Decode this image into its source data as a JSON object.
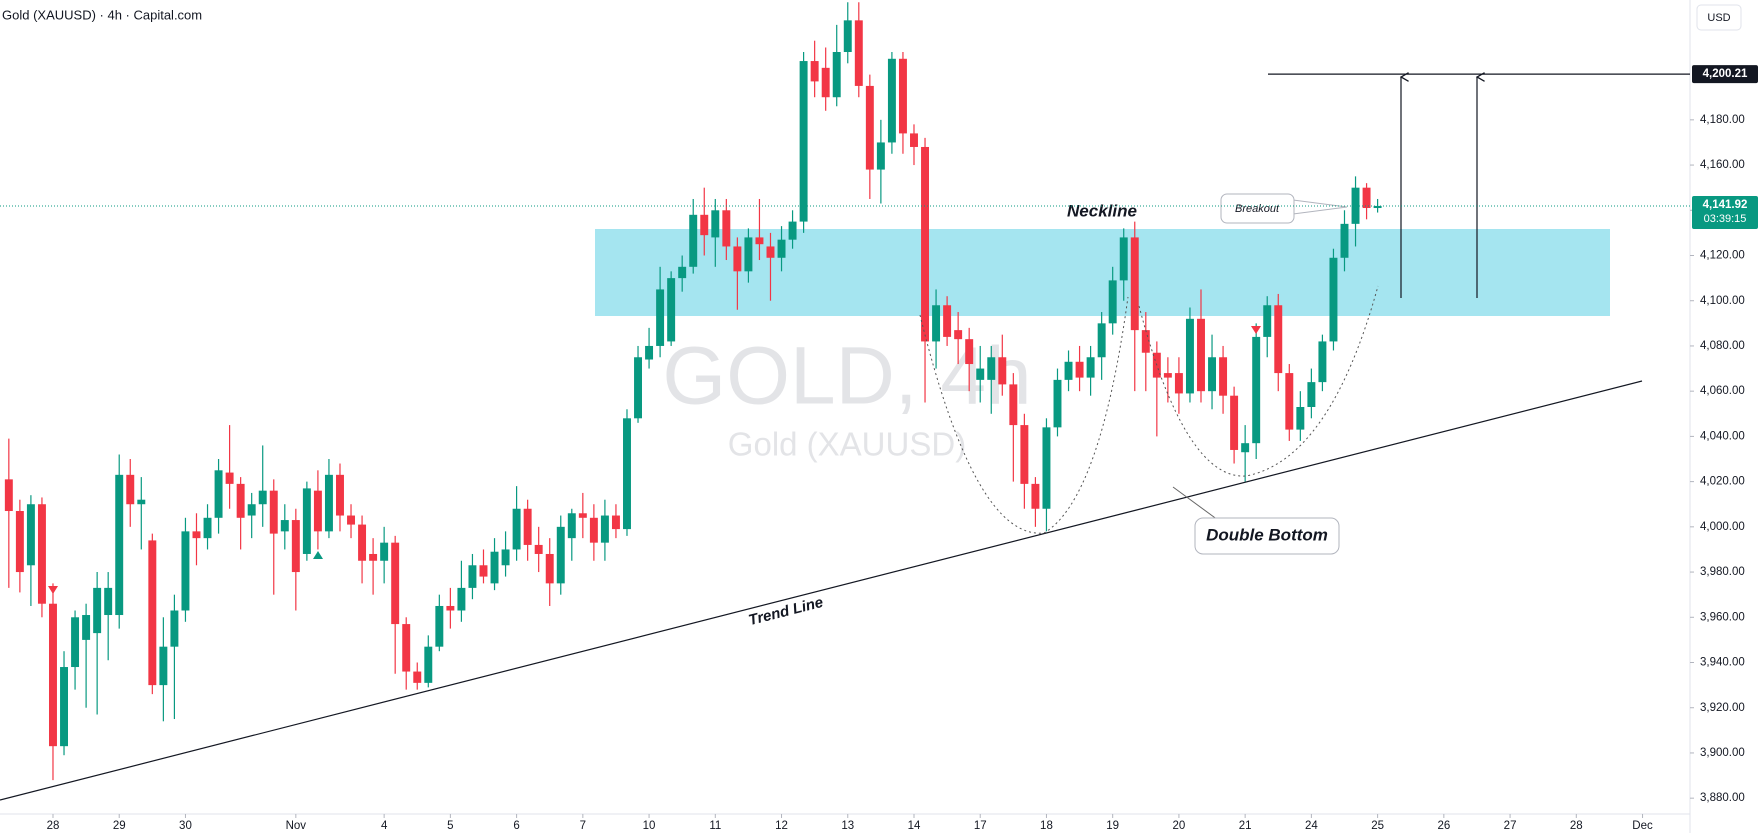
{
  "chart_data": {
    "type": "candlestick",
    "title": "Gold (XAUUSD) · 4h · Capital.com",
    "currency": "USD",
    "watermark_title": "GOLD, 4h",
    "watermark_subtitle": "Gold (XAUUSD)",
    "annotations": {
      "neckline": "Neckline",
      "breakout": "Breakout",
      "double_bottom": "Double Bottom",
      "trend_line": "Trend Line"
    },
    "up_color": "#089981",
    "down_color": "#f23645",
    "grid": false,
    "open": [
      4021,
      4007,
      3983,
      4010,
      3966,
      3903,
      3938,
      3950,
      3953,
      3961,
      3961,
      4023,
      4010,
      3994,
      3930,
      3947,
      3963,
      3998,
      3995,
      4004,
      4024,
      4019,
      4005,
      4010,
      4016,
      3998,
      4003,
      3988,
      4016,
      3998,
      4023,
      4005,
      4001,
      3988,
      3985,
      3993,
      3957,
      3936,
      3931,
      3947,
      3965,
      3963,
      3973,
      3983,
      3975,
      3983,
      3990,
      4008,
      3992,
      3988,
      3975,
      3995,
      4006,
      4004,
      3993,
      4005,
      3999,
      4048,
      4074,
      4080,
      4082,
      4110,
      4115,
      4138,
      4128,
      4140,
      4124,
      4113,
      4128,
      4124,
      4119,
      4127,
      4135,
      4206,
      4203,
      4190,
      4210,
      4224,
      4195,
      4158,
      4170,
      4207,
      4174,
      4168,
      4082,
      4098,
      4087,
      4083,
      4065,
      4065,
      4075,
      4063,
      4045,
      4019,
      4008,
      4044,
      4065,
      4073,
      4066,
      4075,
      4090,
      4109,
      4128,
      4087,
      4077,
      4068,
      4068,
      4059,
      4092,
      4060,
      4075,
      4058,
      4033,
      4037,
      4084,
      4098,
      4068,
      4043,
      4053,
      4064,
      4082,
      4119,
      4134,
      4150,
      4141
    ],
    "high": [
      4039,
      4012,
      4014,
      4013,
      3975,
      3945,
      3963,
      3966,
      3980,
      3980,
      4032,
      4030,
      4022,
      3997,
      3960,
      3970,
      4004,
      4006,
      4010,
      4030,
      4045,
      4022,
      4015,
      4036,
      4021,
      4010,
      4008,
      4020,
      4025,
      4030,
      4028,
      4010,
      4005,
      3995,
      4000,
      3996,
      3960,
      3940,
      3952,
      3970,
      3973,
      3985,
      3988,
      3990,
      3995,
      3998,
      4018,
      4012,
      4000,
      3995,
      4005,
      4008,
      4015,
      4010,
      4012,
      4010,
      4052,
      4080,
      4088,
      4115,
      4113,
      4120,
      4145,
      4150,
      4145,
      4145,
      4128,
      4132,
      4145,
      4130,
      4133,
      4140,
      4210,
      4215,
      4212,
      4222,
      4232,
      4232,
      4200,
      4180,
      4210,
      4210,
      4178,
      4172,
      4105,
      4102,
      4095,
      4088,
      4080,
      4080,
      4085,
      4068,
      4050,
      4022,
      4048,
      4070,
      4078,
      4080,
      4080,
      4095,
      4115,
      4132,
      4135,
      4095,
      4082,
      4075,
      4075,
      4097,
      4105,
      4085,
      4080,
      4062,
      4045,
      4090,
      4102,
      4103,
      4072,
      4060,
      4070,
      4085,
      4123,
      4140,
      4155,
      4152,
      4145
    ],
    "low": [
      3973,
      3971,
      3965,
      3960,
      3888,
      3899,
      3928,
      3920,
      3917,
      3941,
      3955,
      4000,
      3990,
      3926,
      3914,
      3915,
      3958,
      3983,
      3990,
      3997,
      4008,
      3990,
      3995,
      4000,
      3970,
      3990,
      3963,
      3985,
      3990,
      3995,
      3998,
      3995,
      3975,
      3970,
      3975,
      3935,
      3928,
      3928,
      3929,
      3945,
      3955,
      3958,
      3968,
      3975,
      3972,
      3978,
      3985,
      3985,
      3980,
      3965,
      3970,
      3985,
      3995,
      3985,
      3985,
      3995,
      3996,
      4046,
      4070,
      4075,
      4080,
      4104,
      4112,
      4120,
      4115,
      4118,
      4096,
      4108,
      4118,
      4100,
      4113,
      4123,
      4130,
      4190,
      4184,
      4186,
      4205,
      4190,
      4145,
      4143,
      4165,
      4165,
      4160,
      4055,
      4070,
      4080,
      4072,
      4060,
      4055,
      4050,
      4058,
      4020,
      4008,
      4000,
      3998,
      4040,
      4060,
      4060,
      4058,
      4065,
      4085,
      4100,
      4060,
      4060,
      4040,
      4055,
      4050,
      4055,
      4055,
      4052,
      4050,
      4028,
      4020,
      4030,
      4075,
      4060,
      4038,
      4038,
      4048,
      4060,
      4078,
      4113,
      4124,
      4136,
      4139
    ],
    "close": [
      4007,
      3980,
      4010,
      3966,
      3903,
      3938,
      3960,
      3961,
      3973,
      3973,
      4023,
      4010,
      4012,
      3930,
      3947,
      3963,
      3998,
      3995,
      4004,
      4025,
      4019,
      4004,
      4010,
      4016,
      3997,
      4003,
      3980,
      4017,
      3998,
      4023,
      4005,
      4001,
      3985,
      3985,
      3993,
      3957,
      3936,
      3931,
      3947,
      3965,
      3963,
      3973,
      3983,
      3978,
      3989,
      3990,
      4008,
      3992,
      3988,
      3975,
      4000,
      4006,
      4004,
      3993,
      4005,
      3999,
      4048,
      4075,
      4080,
      4105,
      4110,
      4115,
      4138,
      4129,
      4140,
      4124,
      4113,
      4128,
      4125,
      4119,
      4127,
      4135,
      4206,
      4197,
      4190,
      4210,
      4224,
      4195,
      4158,
      4170,
      4207,
      4174,
      4168,
      4082,
      4098,
      4084,
      4083,
      4072,
      4070,
      4075,
      4063,
      4045,
      4019,
      4008,
      4044,
      4065,
      4073,
      4066,
      4075,
      4090,
      4109,
      4128,
      4087,
      4077,
      4066,
      4066,
      4059,
      4092,
      4060,
      4075,
      4058,
      4034,
      4037,
      4084,
      4098,
      4068,
      4043,
      4053,
      4064,
      4082,
      4119,
      4134,
      4150,
      4141,
      4141.92
    ],
    "xlim": [
      -0.8,
      152.3
    ],
    "xticks": [
      {
        "value": 4,
        "label": "28"
      },
      {
        "value": 10,
        "label": "29"
      },
      {
        "value": 16,
        "label": "30"
      },
      {
        "value": 26,
        "label": "Nov"
      },
      {
        "value": 34,
        "label": "4"
      },
      {
        "value": 40,
        "label": "5"
      },
      {
        "value": 46,
        "label": "6"
      },
      {
        "value": 52,
        "label": "7"
      },
      {
        "value": 58,
        "label": "10"
      },
      {
        "value": 64,
        "label": "11"
      },
      {
        "value": 70,
        "label": "12"
      },
      {
        "value": 76,
        "label": "13"
      },
      {
        "value": 82,
        "label": "14"
      },
      {
        "value": 88,
        "label": "17"
      },
      {
        "value": 94,
        "label": "18"
      },
      {
        "value": 100,
        "label": "19"
      },
      {
        "value": 106,
        "label": "20"
      },
      {
        "value": 112,
        "label": "21"
      },
      {
        "value": 118,
        "label": "24"
      },
      {
        "value": 124,
        "label": "25"
      },
      {
        "value": 130,
        "label": "26"
      },
      {
        "value": 136,
        "label": "27"
      },
      {
        "value": 142,
        "label": "28"
      },
      {
        "value": 148,
        "label": "Dec"
      }
    ],
    "ylim": [
      3873,
      4233
    ],
    "yticks": [
      {
        "value": 3880,
        "label": "3,880.00"
      },
      {
        "value": 3900,
        "label": "3,900.00"
      },
      {
        "value": 3920,
        "label": "3,920.00"
      },
      {
        "value": 3940,
        "label": "3,940.00"
      },
      {
        "value": 3960,
        "label": "3,960.00"
      },
      {
        "value": 3980,
        "label": "3,980.00"
      },
      {
        "value": 4000,
        "label": "4,000.00"
      },
      {
        "value": 4020,
        "label": "4,020.00"
      },
      {
        "value": 4040,
        "label": "4,040.00"
      },
      {
        "value": 4060,
        "label": "4,060.00"
      },
      {
        "value": 4080,
        "label": "4,080.00"
      },
      {
        "value": 4100,
        "label": "4,100.00"
      },
      {
        "value": 4120,
        "label": "4,120.00"
      },
      {
        "value": 4140,
        "label": "4,140.00"
      },
      {
        "value": 4160,
        "label": "4,160.00"
      },
      {
        "value": 4180,
        "label": "4,180.00"
      }
    ],
    "target": {
      "value": 4200.21,
      "label": "4,200.21"
    },
    "last_price": {
      "value": 4141.92,
      "label": "4,141.92",
      "countdown": "03:39:15"
    }
  }
}
